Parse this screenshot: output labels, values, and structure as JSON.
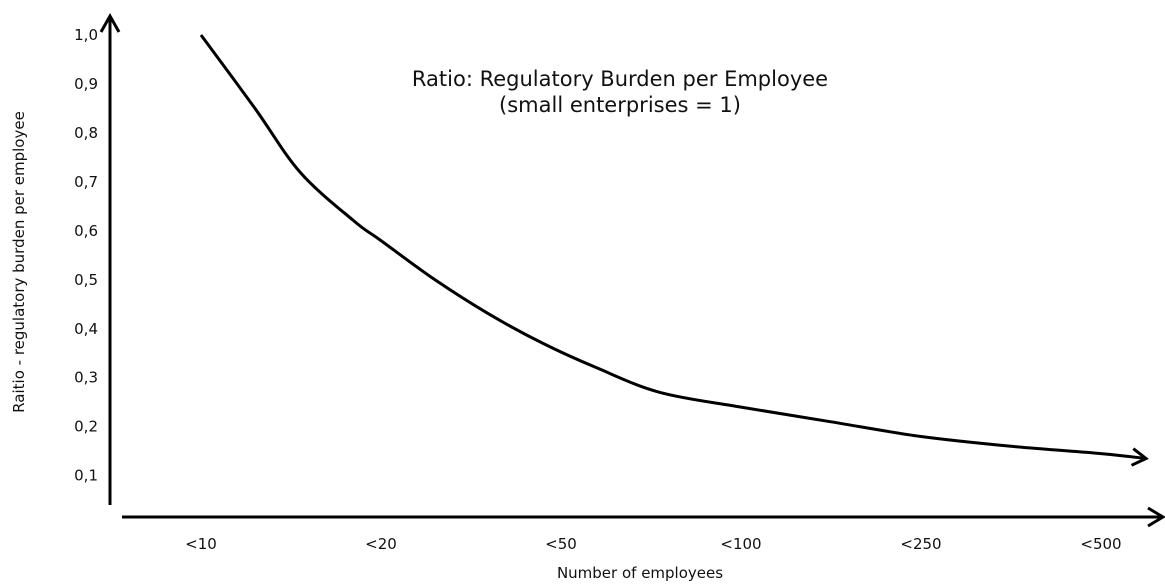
{
  "chart_data": {
    "type": "line",
    "title": "Ratio: Regulatory Burden per Employee",
    "subtitle": "(small enterprises = 1)",
    "xlabel": "Number of employees",
    "ylabel": "Raitio - regulatory burden per employee",
    "categories": [
      "<10",
      "<20",
      "<50",
      "<100",
      "<250",
      "<500"
    ],
    "y_ticks": [
      "1,0",
      "0,9",
      "0,8",
      "0,7",
      "0,6",
      "0,5",
      "0,4",
      "0,3",
      "0,2",
      "0,1"
    ],
    "y_tick_values": [
      1.0,
      0.9,
      0.8,
      0.7,
      0.6,
      0.5,
      0.4,
      0.3,
      0.2,
      0.1
    ],
    "ylim": [
      0.04,
      1.0
    ],
    "x_range": [
      -0.45,
      5.3
    ],
    "grid": false,
    "legend": "none",
    "series": [
      {
        "x": [
          0.0,
          0.3,
          0.55,
          0.85,
          1.0,
          1.3,
          1.6,
          1.9,
          2.2,
          2.55,
          3.0,
          3.5,
          4.0,
          4.5,
          5.0,
          5.25
        ],
        "y": [
          1.0,
          0.85,
          0.72,
          0.62,
          0.58,
          0.5,
          0.43,
          0.37,
          0.32,
          0.27,
          0.24,
          0.21,
          0.18,
          0.16,
          0.145,
          0.135
        ]
      }
    ],
    "line_color": "#000000"
  }
}
